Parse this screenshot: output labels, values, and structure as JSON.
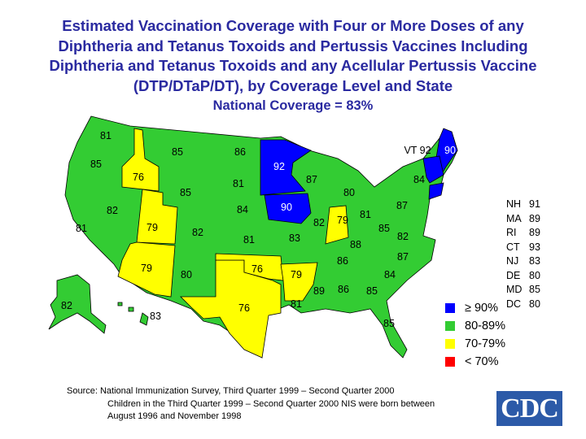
{
  "title": {
    "line1": "Estimated Vaccination Coverage with Four or More Doses of any",
    "line2": "Diphtheria and Tetanus Toxoids and Pertussis Vaccines Including",
    "line3": "Diphtheria and Tetanus Toxoids and any Acellular Pertussis Vaccine",
    "line4": "(DTP/DTaP/DT), by Coverage Level and State",
    "national": "National Coverage = 83%"
  },
  "colors": {
    "ge90": "#0000ff",
    "80to89": "#33cc33",
    "70to79": "#ffff00",
    "lt70": "#ff0000"
  },
  "states": {
    "WA": "81",
    "OR": "85",
    "CA": "81",
    "ID": "76",
    "NV": "82",
    "MT": "85",
    "WY": "85",
    "UT": "79",
    "AZ": "79",
    "CO": "82",
    "NM": "80",
    "ND": "86",
    "SD": "81",
    "NE": "84",
    "KS": "81",
    "OK": "76",
    "TX": "76",
    "MN": "92",
    "IA": "90",
    "MO": "83",
    "AR": "79",
    "LA": "81",
    "WI": "87",
    "IL": "82",
    "MI": "80",
    "IN": "79",
    "OH": "81",
    "KY": "88",
    "TN": "86",
    "MS": "89",
    "AL": "86",
    "GA": "85",
    "FL": "85",
    "SC": "84",
    "NC": "87",
    "VA": "82",
    "WV": "85",
    "PA": "87",
    "NY": "84",
    "ME": "90",
    "VT": "VT 92",
    "AK": "82",
    "HI": "83"
  },
  "small_states": [
    {
      "state": "NH",
      "value": "91"
    },
    {
      "state": "MA",
      "value": "89"
    },
    {
      "state": "RI",
      "value": "89"
    },
    {
      "state": "CT",
      "value": "93"
    },
    {
      "state": "NJ",
      "value": "83"
    },
    {
      "state": "DE",
      "value": "80"
    },
    {
      "state": "MD",
      "value": "85"
    },
    {
      "state": "DC",
      "value": "80"
    }
  ],
  "legend": [
    {
      "label": "≥  90%"
    },
    {
      "label": "80-89%"
    },
    {
      "label": "70-79%"
    },
    {
      "label": "<  70%"
    }
  ],
  "source": {
    "line1": "Source:  National Immunization Survey, Third Quarter 1999 – Second Quarter 2000",
    "line2": "Children in the Third Quarter 1999 – Second Quarter 2000 NIS were born between",
    "line3": "August 1996 and November 1998"
  },
  "logo": "CDC"
}
